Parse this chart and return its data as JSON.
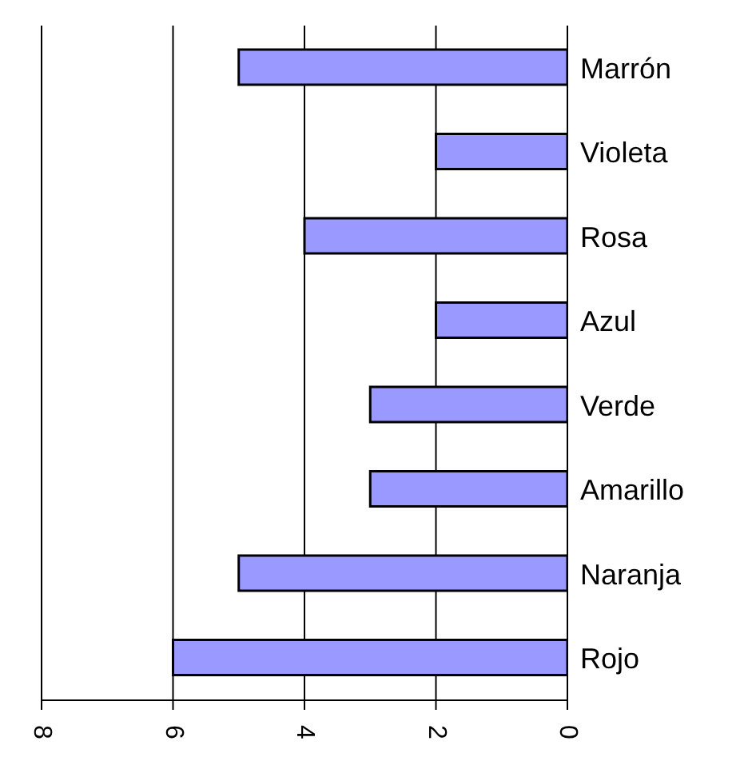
{
  "chart_data": {
    "type": "bar",
    "orientation": "horizontal",
    "categories": [
      "Marrón",
      "Violeta",
      "Rosa",
      "Azul",
      "Verde",
      "Amarillo",
      "Naranja",
      "Rojo"
    ],
    "values": [
      5,
      2,
      4,
      2,
      3,
      3,
      5,
      6
    ],
    "color": "#9999ff",
    "xlim": [
      8,
      0
    ],
    "xticks": [
      8,
      6,
      4,
      2,
      0
    ],
    "grid": "x"
  }
}
